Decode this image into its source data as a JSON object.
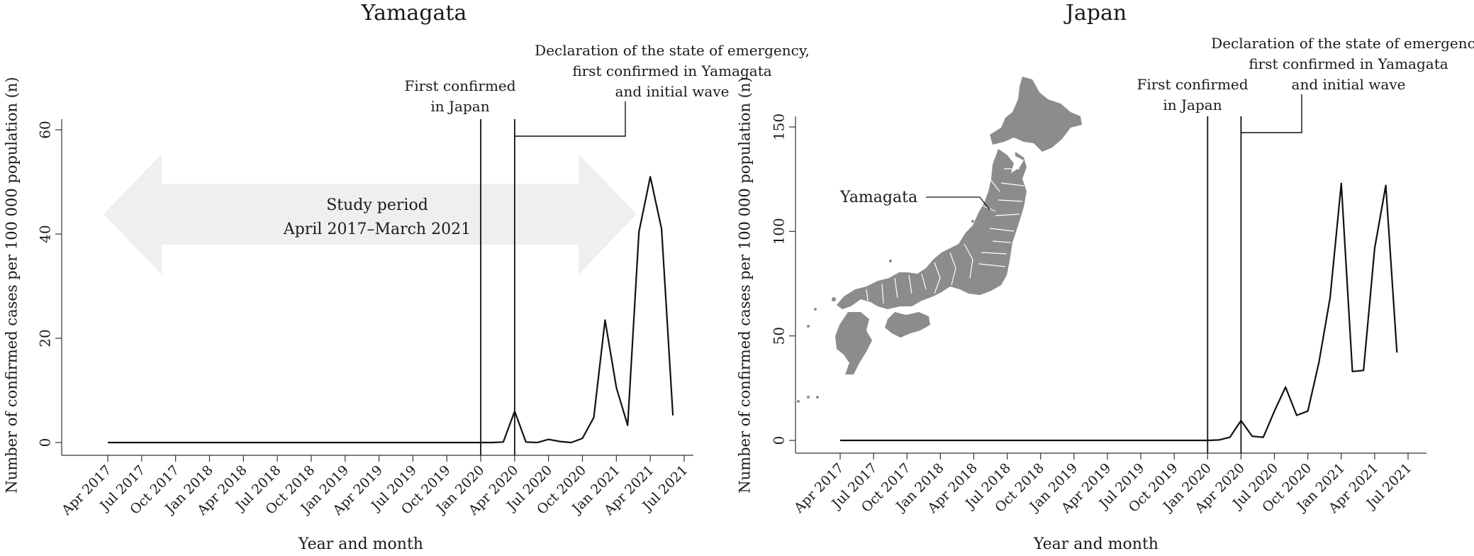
{
  "chart_data": [
    {
      "type": "line",
      "title": "Yamagata",
      "xlabel": "Year and month",
      "ylabel": "Number of confirmed cases per 100 000 population (n)",
      "ylim": [
        0,
        60
      ],
      "y_ticks": [
        0,
        20,
        40,
        60
      ],
      "x_ticks": [
        "Apr 2017",
        "Jul 2017",
        "Oct 2017",
        "Jan 2018",
        "Apr 2018",
        "Jul 2018",
        "Oct 2018",
        "Jan 2019",
        "Apr 2019",
        "Jul 2019",
        "Oct 2019",
        "Jan 2020",
        "Apr 2020",
        "Jul 2020",
        "Oct 2020",
        "Jan 2021",
        "Apr 2021",
        "Jul 2021"
      ],
      "x_range": [
        "Apr 2017",
        "Jul 2021"
      ],
      "series": [
        {
          "x": [
            "Apr 2017",
            "Jan 2020",
            "Feb 2020",
            "Mar 2020",
            "Apr 2020",
            "May 2020",
            "Jun 2020",
            "Jul 2020",
            "Aug 2020",
            "Sep 2020",
            "Oct 2020",
            "Nov 2020",
            "Dec 2020",
            "Jan 2021",
            "Feb 2021",
            "Mar 2021",
            "Apr 2021",
            "May 2021",
            "Jun 2021"
          ],
          "values": [
            0,
            0,
            0,
            0.1,
            6.0,
            0.1,
            0,
            0.6,
            0.2,
            0,
            0.8,
            4.8,
            23.5,
            10.5,
            3.3,
            40.4,
            51.0,
            41.0,
            5.2
          ]
        }
      ],
      "vlines": [
        {
          "x": "Jan 2020",
          "label_lines": [
            "First confirmed",
            "in Japan"
          ]
        },
        {
          "x": "Apr 2020",
          "label_lines": [
            "Declaration of the state of emergency,",
            "first confirmed in Yamagata",
            "and initial wave"
          ]
        }
      ],
      "annotation": {
        "label_lines": [
          "Study period",
          "April 2017–March 2021"
        ],
        "from": "Apr 2017",
        "to": "Mar 2021",
        "color": "#efefef"
      },
      "grid": false
    },
    {
      "type": "line",
      "title": "Japan",
      "xlabel": "Year and month",
      "ylabel": "Number of confirmed cases per 100 000 population (n)",
      "ylim": [
        0,
        150
      ],
      "y_ticks": [
        0,
        50,
        100,
        150
      ],
      "x_ticks": [
        "Apr 2017",
        "Jul 2017",
        "Oct 2017",
        "Jan 2018",
        "Apr 2018",
        "Jul 2018",
        "Oct 2018",
        "Jan 2019",
        "Apr 2019",
        "Jul 2019",
        "Oct 2019",
        "Jan 2020",
        "Apr 2020",
        "Jul 2020",
        "Oct 2020",
        "Jan 2021",
        "Apr 2021",
        "Jul 2021"
      ],
      "x_range": [
        "Apr 2017",
        "Jul 2021"
      ],
      "series": [
        {
          "x": [
            "Apr 2017",
            "Jan 2020",
            "Feb 2020",
            "Mar 2020",
            "Apr 2020",
            "May 2020",
            "Jun 2020",
            "Jul 2020",
            "Aug 2020",
            "Sep 2020",
            "Oct 2020",
            "Nov 2020",
            "Dec 2020",
            "Jan 2021",
            "Feb 2021",
            "Mar 2021",
            "Apr 2021",
            "May 2021",
            "Jun 2021"
          ],
          "values": [
            0,
            0,
            0.2,
            1.5,
            9.5,
            2.0,
            1.5,
            14.0,
            25.5,
            12.0,
            14.0,
            37.5,
            68.5,
            123.0,
            33.0,
            33.5,
            92.0,
            122.0,
            42.0
          ]
        }
      ],
      "vlines": [
        {
          "x": "Jan 2020",
          "label_lines": [
            "First confirmed",
            "in Japan"
          ]
        },
        {
          "x": "Apr 2020",
          "label_lines": [
            "Declaration of the state of emergency,",
            "first confirmed in Yamagata",
            "and initial wave"
          ]
        }
      ],
      "inset_map": {
        "label": "Yamagata",
        "fill": "#8c8c8c"
      },
      "grid": false
    }
  ]
}
